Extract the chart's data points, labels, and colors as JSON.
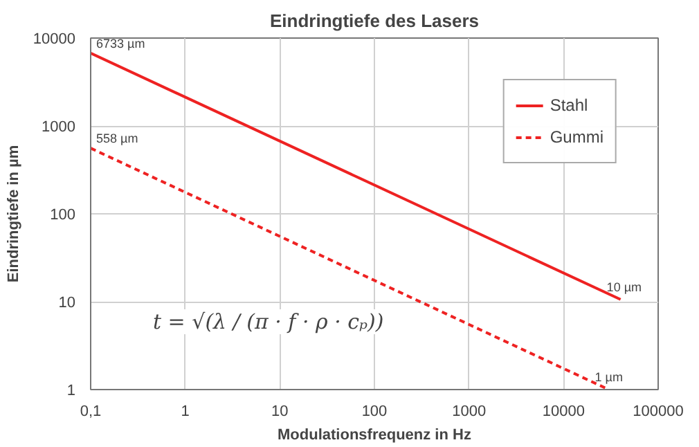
{
  "chart_data": {
    "type": "line",
    "title": "Eindringtiefe des Lasers",
    "xlabel": "Modulationsfrequenz in Hz",
    "ylabel": "Eindringtiefe in µm",
    "log": "xy",
    "grid": true,
    "legend": "top right",
    "marker": "none",
    "xlim": [
      0.1,
      100000
    ],
    "ylim": [
      1,
      10000
    ],
    "xticks": [
      {
        "value": 0.1,
        "label": "0,1"
      },
      1,
      10,
      100,
      1000,
      10000,
      100000
    ],
    "yticks": [
      1,
      10,
      100,
      1000,
      10000
    ],
    "series": [
      {
        "name": "Stahl",
        "color": "#ee2222",
        "line_style": "solid",
        "x": [
          0.1,
          40000
        ],
        "values": [
          6733,
          10.6
        ]
      },
      {
        "name": "Gummi",
        "color": "#ee2222",
        "line_style": "dashed",
        "x": [
          0.1,
          30000
        ],
        "values": [
          558,
          1
        ]
      }
    ],
    "annotations": [
      {
        "text": "6733 µm",
        "x": 0.1,
        "y": 6733
      },
      {
        "text": "558 µm",
        "x": 0.1,
        "y": 558
      },
      {
        "text": "10 µm",
        "x": 40000,
        "y": 10.6
      },
      {
        "text": "1 µm",
        "x": 30000,
        "y": 1
      },
      "t = √(λ / (π · f · ρ · cₚ))"
    ]
  }
}
